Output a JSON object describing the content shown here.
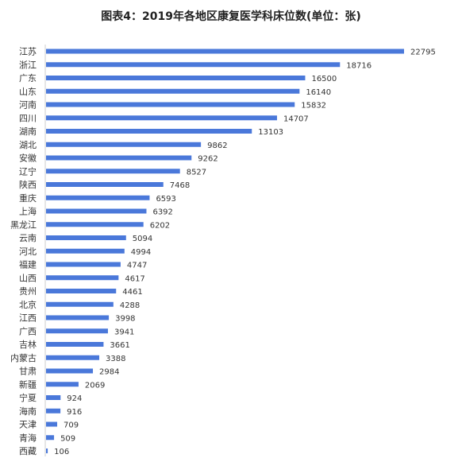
{
  "chart_data": {
    "type": "bar",
    "orientation": "horizontal",
    "title": "图表4：2019年各地区康复医学科床位数(单位：张)",
    "xlabel": "",
    "ylabel": "",
    "grid": false,
    "legend": "none",
    "bar_color": "#4A78DA",
    "xlim": [
      0,
      22795
    ],
    "categories": [
      "江苏",
      "浙江",
      "广东",
      "山东",
      "河南",
      "四川",
      "湖南",
      "湖北",
      "安徽",
      "辽宁",
      "陕西",
      "重庆",
      "上海",
      "黑龙江",
      "云南",
      "河北",
      "福建",
      "山西",
      "贵州",
      "北京",
      "江西",
      "广西",
      "吉林",
      "内蒙古",
      "甘肃",
      "新疆",
      "宁夏",
      "海南",
      "天津",
      "青海",
      "西藏"
    ],
    "values": [
      22795,
      18716,
      16500,
      16140,
      15832,
      14707,
      13103,
      9862,
      9262,
      8527,
      7468,
      6593,
      6392,
      6202,
      5094,
      4994,
      4747,
      4617,
      4461,
      4288,
      3998,
      3941,
      3661,
      3388,
      2984,
      2069,
      924,
      916,
      709,
      509,
      106
    ]
  }
}
